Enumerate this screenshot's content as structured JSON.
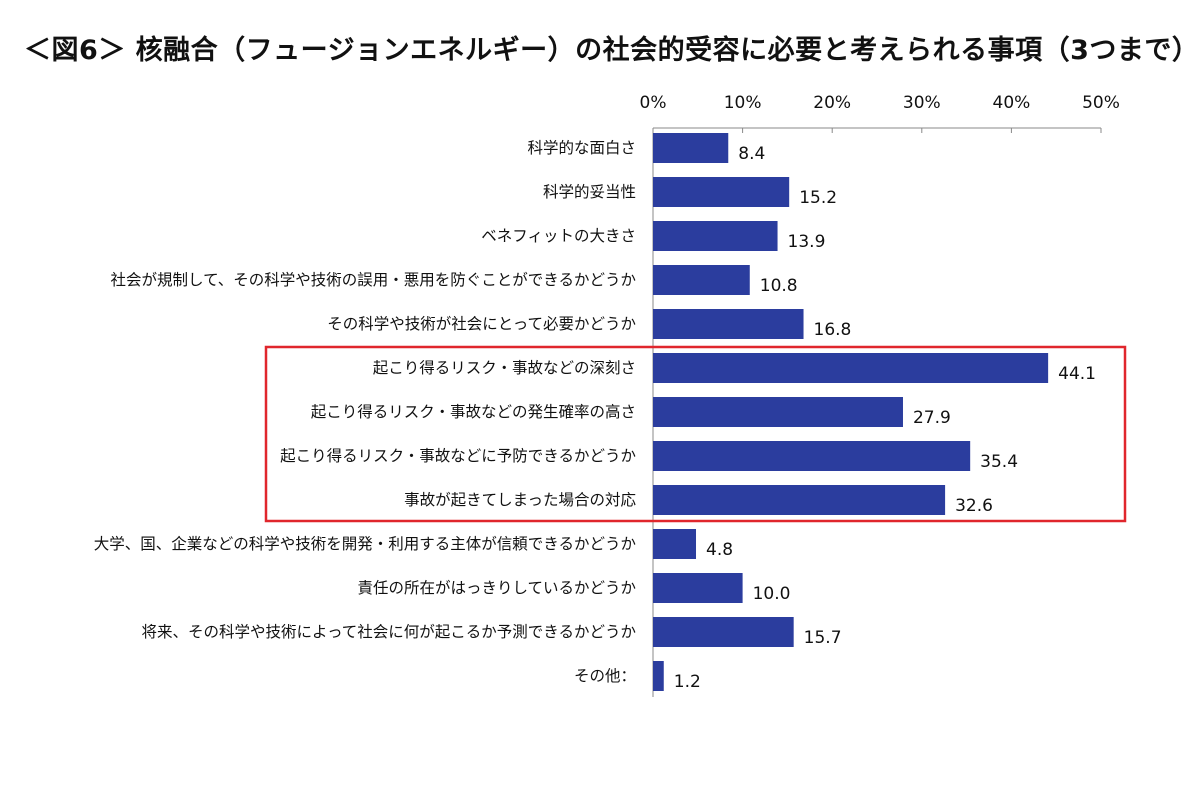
{
  "chart_data": {
    "type": "bar",
    "orientation": "horizontal",
    "title": "＜図6＞ 核融合（フュージョンエネルギー）の社会的受容に必要と考えられる事項（3つまで）",
    "xlabel": "",
    "ylabel": "",
    "xlim": [
      0,
      50
    ],
    "tick_values": [
      0,
      10,
      20,
      30,
      40,
      50
    ],
    "tick_labels": [
      "0%",
      "10%",
      "20%",
      "30%",
      "40%",
      "50%"
    ],
    "axis_position": "top",
    "grid": false,
    "bar_color": "#2b3d9e",
    "highlight_color": "#e0262c",
    "highlight_indices": [
      5,
      6,
      7,
      8
    ],
    "categories": [
      "科学的な面白さ",
      "科学的妥当性",
      "ベネフィットの大きさ",
      "社会が規制して、その科学や技術の誤用・悪用を防ぐことができるかどうか",
      "その科学や技術が社会にとって必要かどうか",
      "起こり得るリスク・事故などの深刻さ",
      "起こり得るリスク・事故などの発生確率の高さ",
      "起こり得るリスク・事故などに予防できるかどうか",
      "事故が起きてしまった場合の対応",
      "大学、国、企業などの科学や技術を開発・利用する主体が信頼できるかどうか",
      "責任の所在がはっきりしているかどうか",
      "将来、その科学や技術によって社会に何が起こるか予測できるかどうか",
      "その他："
    ],
    "values": [
      8.4,
      15.2,
      13.9,
      10.8,
      16.8,
      44.1,
      27.9,
      35.4,
      32.6,
      4.8,
      10.0,
      15.7,
      1.2
    ],
    "value_labels": [
      "8.4",
      "15.2",
      "13.9",
      "10.8",
      "16.8",
      "44.1",
      "27.9",
      "35.4",
      "32.6",
      "4.8",
      "10.0",
      "15.7",
      "1.2"
    ]
  }
}
